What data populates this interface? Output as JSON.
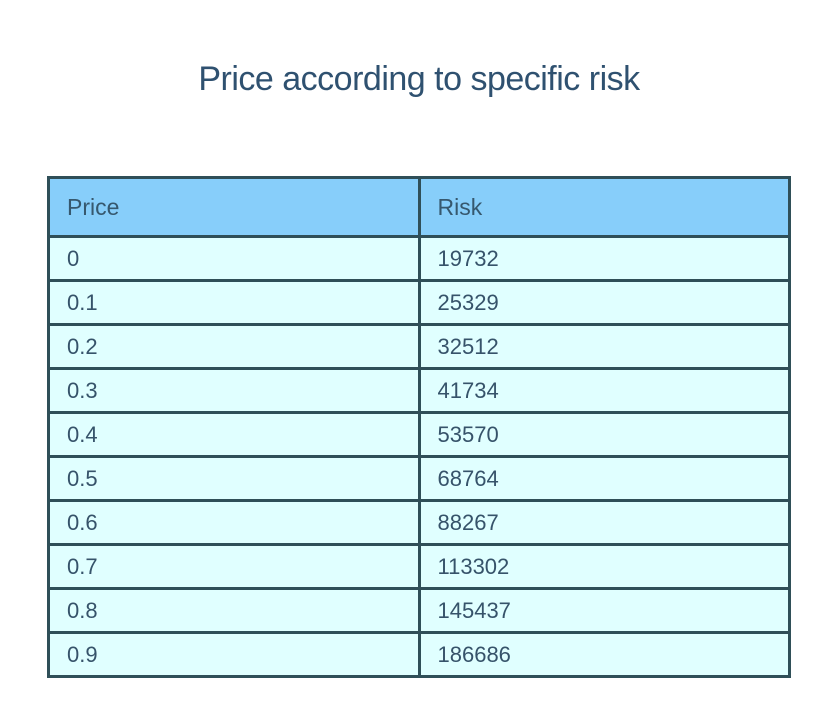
{
  "page": {
    "title": "Price according to specific risk"
  },
  "colors": {
    "title-text": "#2f5170",
    "header-bg": "#87cefa",
    "header-text": "#36586e",
    "row-bg": "#e0ffff",
    "cell-text": "#36536a",
    "border": "#2f4f58"
  },
  "table": {
    "columns": [
      "Price",
      "Risk"
    ],
    "rows": [
      [
        "0",
        "19732"
      ],
      [
        "0.1",
        "25329"
      ],
      [
        "0.2",
        "32512"
      ],
      [
        "0.3",
        "41734"
      ],
      [
        "0.4",
        "53570"
      ],
      [
        "0.5",
        "68764"
      ],
      [
        "0.6",
        "88267"
      ],
      [
        "0.7",
        "113302"
      ],
      [
        "0.8",
        "145437"
      ],
      [
        "0.9",
        "186686"
      ]
    ]
  },
  "chart_data": {
    "type": "table",
    "title": "Price according to specific risk",
    "columns": [
      "Price",
      "Risk"
    ],
    "x": [
      0,
      0.1,
      0.2,
      0.3,
      0.4,
      0.5,
      0.6,
      0.7,
      0.8,
      0.9
    ],
    "series": [
      {
        "name": "Risk",
        "values": [
          19732,
          25329,
          32512,
          41734,
          53570,
          68764,
          88267,
          113302,
          145437,
          186686
        ]
      }
    ],
    "xlabel": "Price",
    "ylabel": "Risk"
  }
}
